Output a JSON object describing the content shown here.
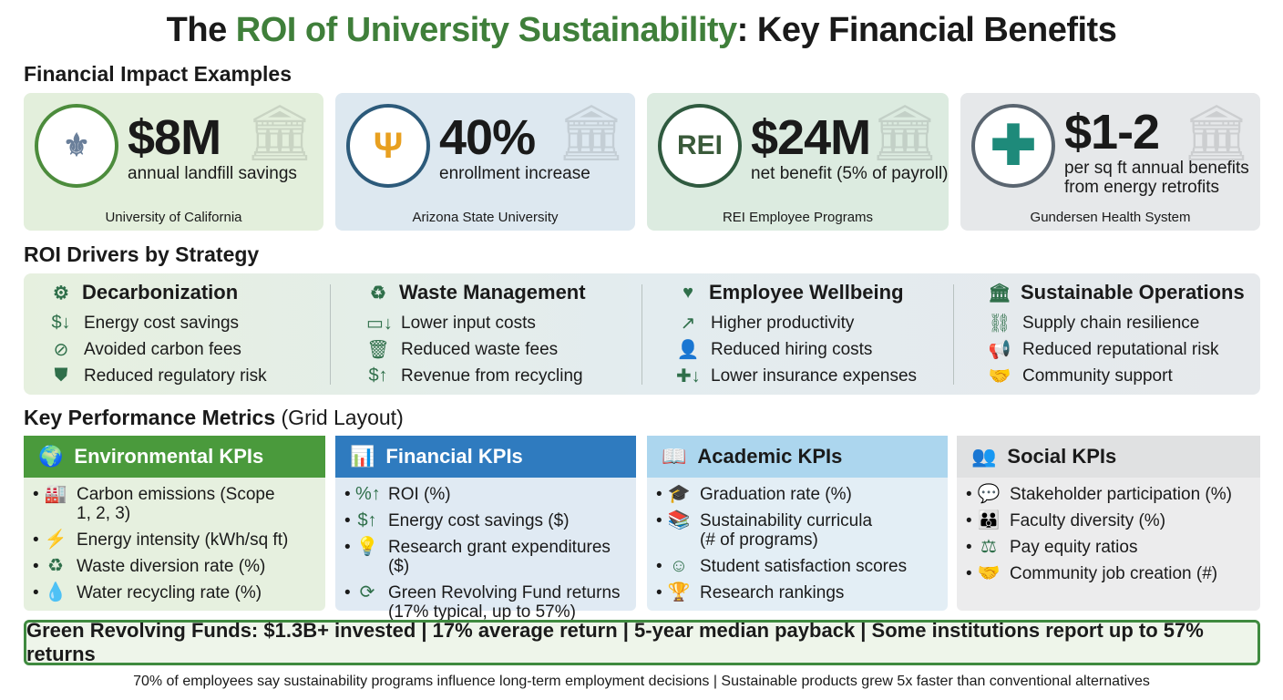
{
  "title": {
    "pre": "The ",
    "highlight": "ROI of University Sustainability",
    "post": ": Key Financial Benefits"
  },
  "impact": {
    "heading": "Financial Impact Examples",
    "cards": [
      {
        "value": "$8M",
        "desc": "annual landfill savings",
        "source": "University of California",
        "logo": "UC-seal-logo"
      },
      {
        "value": "40%",
        "desc": "enrollment increase",
        "source": "Arizona State University",
        "logo": "pitchfork-logo"
      },
      {
        "value": "$24M",
        "desc": "net benefit (5% of payroll)",
        "source": "REI Employee Programs",
        "logo": "REI",
        "logo_text": "REI"
      },
      {
        "value": "$1-2",
        "desc": "per sq ft annual benefits from energy retrofits",
        "source": "Gundersen Health System",
        "logo": "medical-cross-logo"
      }
    ]
  },
  "drivers": {
    "heading": "ROI Drivers by Strategy",
    "columns": [
      {
        "title": "Decarbonization",
        "items": [
          "Energy cost savings",
          "Avoided carbon fees",
          "Reduced regulatory risk"
        ]
      },
      {
        "title": "Waste Management",
        "items": [
          "Lower input costs",
          "Reduced waste fees",
          "Revenue from recycling"
        ]
      },
      {
        "title": "Employee Wellbeing",
        "items": [
          "Higher productivity",
          "Reduced hiring costs",
          "Lower insurance expenses"
        ]
      },
      {
        "title": "Sustainable Operations",
        "items": [
          "Supply chain resilience",
          "Reduced reputational risk",
          "Community support"
        ]
      }
    ]
  },
  "kpis": {
    "heading": "Key Performance Metrics",
    "heading_note": "(Grid Layout)",
    "cards": [
      {
        "title": "Environmental KPIs",
        "color": "#4a9a3c",
        "items": [
          "Carbon emissions (Scope 1, 2, 3)",
          "Energy intensity (kWh/sq ft)",
          "Waste diversion rate (%)",
          "Water recycling rate (%)"
        ]
      },
      {
        "title": "Financial KPIs",
        "color": "#2f7bbf",
        "items": [
          "ROI (%)",
          "Energy cost savings ($)",
          "Research grant expenditures ($)",
          "Green Revolving Fund returns (17% typical, up to 57%)"
        ]
      },
      {
        "title": "Academic KPIs",
        "color": "#acd6ee",
        "items": [
          "Graduation rate (%)",
          "Sustainability curricula (# of programs)",
          "Student satisfaction scores",
          "Research rankings"
        ]
      },
      {
        "title": "Social KPIs",
        "color": "#e0e1e2",
        "items": [
          "Stakeholder participation (%)",
          "Faculty diversity (%)",
          "Pay equity ratios",
          "Community job creation (#)"
        ]
      }
    ]
  },
  "banner": "Green Revolving Funds: $1.3B+ invested | 17% average return | 5-year median payback | Some institutions report up to 57% returns",
  "footer": "70% of employees say sustainability programs influence long-term employment decisions | Sustainable products grew 5x faster than conventional alternatives"
}
